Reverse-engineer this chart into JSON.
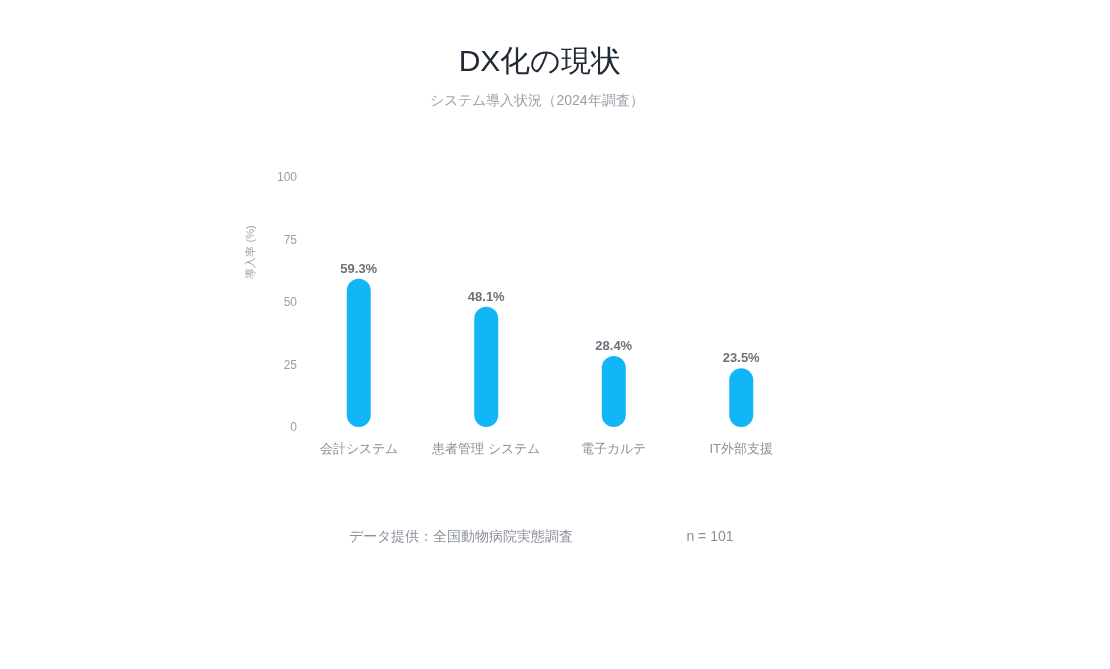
{
  "chart_data": {
    "type": "bar",
    "title": "DX化の現状",
    "subtitle": "システム導入状況（2024年調査）",
    "ylabel": "導入率 (%)",
    "categories": [
      "会計システム",
      "患者管理 システム",
      "電子カルテ",
      "IT外部支援"
    ],
    "values": [
      59.3,
      48.1,
      28.4,
      23.5
    ],
    "color": "#12b5f6",
    "value_labels": [
      "59.3%",
      "48.1%",
      "28.4%",
      "23.5%"
    ],
    "ylim": [
      0,
      100
    ],
    "yticks": [
      0,
      25,
      50,
      75,
      100
    ],
    "annotations": [
      "データ提供：全国動物病院実態調査",
      "n = 101"
    ]
  }
}
